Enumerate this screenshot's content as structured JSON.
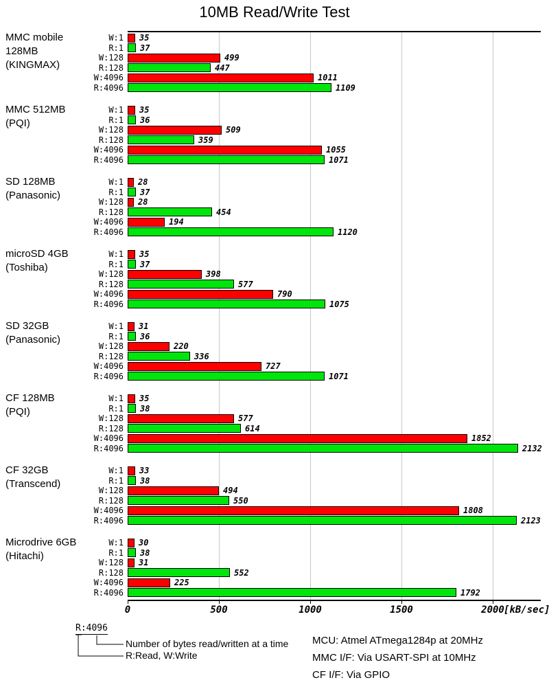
{
  "legend": {
    "sample": "R:4096",
    "line1": "Number of bytes read/written at a time",
    "line2": "R:Read, W:Write"
  },
  "notes": [
    "MCU: Atmel ATmega1284p at 20MHz",
    "MMC I/F: Via USART-SPI at 10MHz",
    "CF I/F: Via GPIO"
  ],
  "chart_data": {
    "type": "bar",
    "orientation": "horizontal",
    "title": "10MB Read/Write Test",
    "xlabel": "[kB/sec]",
    "xlim": [
      0,
      2260
    ],
    "x_ticks": [
      0,
      500,
      1000,
      1500,
      2000
    ],
    "grid": "vertical-gridlines-on",
    "bar_labels": [
      "W:1",
      "R:1",
      "W:128",
      "R:128",
      "W:4096",
      "R:4096"
    ],
    "series_colors": {
      "write": "#ff0000",
      "read": "#00e50c"
    },
    "bar_pattern_note": "odd rows W=write red, even rows R=read green",
    "groups": [
      {
        "device": "MMC mobile\n128MB\n(KINGMAX)",
        "values": [
          35,
          37,
          499,
          447,
          1011,
          1109
        ]
      },
      {
        "device": "MMC 512MB\n(PQI)",
        "values": [
          35,
          36,
          509,
          359,
          1055,
          1071
        ]
      },
      {
        "device": "SD 128MB\n(Panasonic)",
        "values": [
          28,
          37,
          28,
          454,
          194,
          1120
        ]
      },
      {
        "device": "microSD 4GB\n(Toshiba)",
        "values": [
          35,
          37,
          398,
          577,
          790,
          1075
        ]
      },
      {
        "device": "SD 32GB\n(Panasonic)",
        "values": [
          31,
          36,
          220,
          336,
          727,
          1071
        ]
      },
      {
        "device": "CF 128MB\n(PQI)",
        "values": [
          35,
          38,
          577,
          614,
          1852,
          2132
        ]
      },
      {
        "device": "CF 32GB\n(Transcend)",
        "values": [
          33,
          38,
          494,
          550,
          1808,
          2123
        ]
      },
      {
        "device": "Microdrive 6GB\n(Hitachi)",
        "values": [
          30,
          38,
          31,
          552,
          225,
          1792
        ]
      }
    ]
  }
}
